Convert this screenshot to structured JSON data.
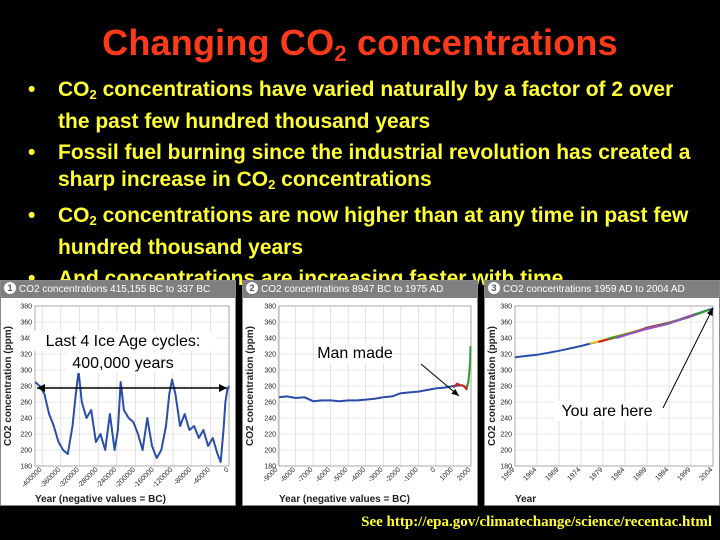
{
  "title": {
    "main": "Changing CO",
    "sub": "2",
    "rest": " concentrations"
  },
  "bullets": [
    {
      "pre": "CO",
      "sub": "2",
      "post": " concentrations have varied naturally by a factor of 2 over the past few hundred thousand years"
    },
    {
      "pre": "Fossil fuel burning since the industrial revolution has created a sharp increase in CO",
      "sub": "2",
      "post": " concentrations"
    },
    {
      "pre": "CO",
      "sub": "2",
      "post": " concentrations are now higher than at any time in past few hundred thousand years"
    },
    {
      "pre": "And concentrations are increasing faster with time",
      "sub": "",
      "post": ""
    }
  ],
  "footer": "See http://epa.gov/climatechange/science/recentac.html",
  "chart_data": [
    {
      "type": "line",
      "number": "1",
      "title": "CO2 concentrations 415,155 BC to 337 BC",
      "ylabel": "CO2 concentration (ppm)",
      "xlabel": "Year (negative values = BC)",
      "ylim": [
        180,
        380
      ],
      "yticks": [
        180,
        200,
        220,
        240,
        260,
        280,
        300,
        320,
        340,
        360,
        380
      ],
      "xlim": [
        -415155,
        -337
      ],
      "xticks": [
        -400000,
        -360000,
        -320000,
        -280000,
        -240000,
        -200000,
        -160000,
        -120000,
        -80000,
        -40000,
        0
      ],
      "xtick_labels": [
        "-400000",
        "-360000",
        "-320000",
        "-280000",
        "-240000",
        "-200000",
        "-160000",
        "-120000",
        "-80000",
        "-40000",
        "0"
      ],
      "annotation": [
        "Last 4 Ice Age cycles:",
        "400,000 years"
      ],
      "series": [
        {
          "color": "#2a4ea8",
          "x": [
            -415000,
            -405000,
            -395000,
            -385000,
            -375000,
            -365000,
            -355000,
            -345000,
            -335000,
            -328000,
            -322000,
            -315000,
            -305000,
            -295000,
            -285000,
            -275000,
            -265000,
            -255000,
            -245000,
            -238000,
            -232000,
            -225000,
            -215000,
            -205000,
            -195000,
            -185000,
            -175000,
            -165000,
            -155000,
            -145000,
            -135000,
            -128000,
            -122000,
            -115000,
            -105000,
            -95000,
            -85000,
            -75000,
            -65000,
            -55000,
            -45000,
            -35000,
            -25000,
            -18000,
            -12000,
            -8000,
            -4000,
            -337
          ],
          "y": [
            285,
            280,
            270,
            245,
            230,
            210,
            200,
            195,
            230,
            270,
            298,
            260,
            240,
            250,
            210,
            220,
            200,
            245,
            200,
            225,
            285,
            250,
            240,
            235,
            220,
            200,
            240,
            205,
            190,
            200,
            230,
            270,
            288,
            270,
            230,
            245,
            225,
            230,
            215,
            225,
            205,
            215,
            195,
            185,
            225,
            260,
            275,
            280
          ]
        }
      ]
    },
    {
      "type": "line",
      "number": "2",
      "title": "CO2 concentrations 8947 BC to 1975 AD",
      "ylabel": "CO2 concentration (ppm)",
      "xlabel": "Year (negative values = BC)",
      "ylim": [
        180,
        380
      ],
      "yticks": [
        180,
        200,
        220,
        240,
        260,
        280,
        300,
        320,
        340,
        360,
        380
      ],
      "xlim": [
        -8947,
        2004
      ],
      "xticks": [
        -9000,
        -8000,
        -7000,
        -6000,
        -5000,
        -4000,
        -3000,
        -2000,
        -1000,
        0,
        1000,
        2000
      ],
      "xtick_labels": [
        "-9000",
        "-8000",
        "-7000",
        "-6000",
        "-5000",
        "-4000",
        "-3000",
        "-2000",
        "-1000",
        "0",
        "1000",
        "2000"
      ],
      "annotation": [
        "Man made"
      ],
      "series": [
        {
          "color": "#2a4ea8",
          "x": [
            -8947,
            -8500,
            -8000,
            -7500,
            -7000,
            -6500,
            -6000,
            -5500,
            -5000,
            -4500,
            -4000,
            -3500,
            -3000,
            -2500,
            -2000,
            -1500,
            -1000,
            -500,
            0,
            500,
            1000,
            1500,
            1750
          ],
          "y": [
            266,
            267,
            265,
            266,
            261,
            262,
            262,
            261,
            262,
            262,
            263,
            264,
            266,
            267,
            271,
            272,
            273,
            275,
            277,
            278,
            280,
            281,
            278
          ]
        },
        {
          "color": "#d22020",
          "x": [
            1000,
            1200,
            1400,
            1600,
            1750,
            1850
          ],
          "y": [
            278,
            283,
            281,
            280,
            276,
            285
          ]
        },
        {
          "color": "#2ca02c",
          "x": [
            1750,
            1850,
            1900,
            1950,
            1975
          ],
          "y": [
            278,
            285,
            296,
            310,
            330
          ]
        }
      ]
    },
    {
      "type": "line",
      "number": "3",
      "title": "CO2 concentrations 1959 AD to 2004 AD",
      "ylabel": "CO2 concentration (ppm)",
      "xlabel": "Year",
      "ylim": [
        180,
        380
      ],
      "yticks": [
        180,
        200,
        220,
        240,
        260,
        280,
        300,
        320,
        340,
        360,
        380
      ],
      "xlim": [
        1959,
        2004
      ],
      "xticks": [
        1959,
        1964,
        1969,
        1974,
        1979,
        1984,
        1989,
        1994,
        1999,
        2004
      ],
      "xtick_labels": [
        "1959",
        "1964",
        "1969",
        "1974",
        "1979",
        "1984",
        "1989",
        "1994",
        "1999",
        "2004"
      ],
      "annotation": [
        "You are here"
      ],
      "series": [
        {
          "color": "#2a4ea8",
          "x": [
            1959,
            1964,
            1969,
            1974,
            1979,
            1984,
            1989,
            1994,
            1999,
            2004
          ],
          "y": [
            316,
            319,
            324,
            330,
            337,
            344,
            353,
            359,
            368,
            377
          ]
        },
        {
          "color": "#e8c020",
          "x": [
            1976,
            1982,
            1988,
            1994,
            2000
          ],
          "y": [
            333,
            342,
            351,
            359,
            369
          ]
        },
        {
          "color": "#d22020",
          "x": [
            1978,
            1984,
            1990,
            1996,
            2002
          ],
          "y": [
            335,
            344,
            354,
            362,
            373
          ]
        },
        {
          "color": "#2ca02c",
          "x": [
            1980,
            1986,
            1992,
            1998,
            2003
          ],
          "y": [
            339,
            347,
            356,
            365,
            375
          ]
        },
        {
          "color": "#9a50c0",
          "x": [
            1982,
            1988,
            1994,
            2000
          ],
          "y": [
            340,
            350,
            358,
            369
          ]
        }
      ]
    }
  ]
}
